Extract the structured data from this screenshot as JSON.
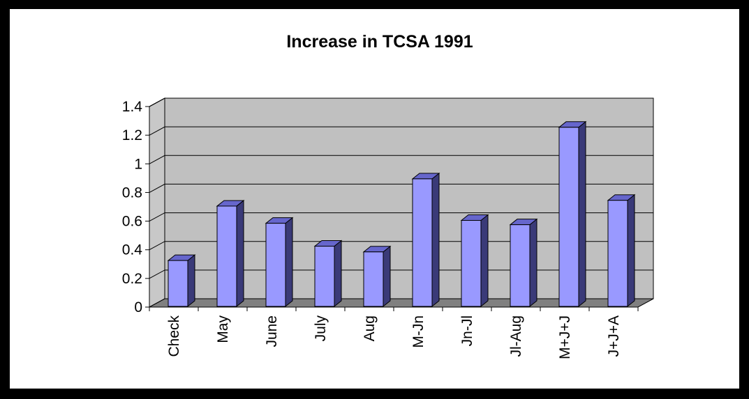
{
  "chart_data": {
    "type": "bar",
    "title": "Increase in TCSA 1991",
    "xlabel": "",
    "ylabel": "",
    "categories": [
      "Check",
      "May",
      "June",
      "July",
      "Aug",
      "M-Jn",
      "Jn-Jl",
      "Jl-Aug",
      "M+J+J",
      "J+J+A"
    ],
    "values": [
      0.33,
      0.71,
      0.59,
      0.43,
      0.39,
      0.9,
      0.61,
      0.58,
      1.26,
      0.75
    ],
    "ylim": [
      0,
      1.4
    ],
    "yticks": [
      "0",
      "0.2",
      "0.4",
      "0.6",
      "0.8",
      "1",
      "1.2",
      "1.4"
    ],
    "grid": true,
    "style": "3d-column",
    "colors": {
      "bar_front": "#9999ff",
      "bar_side": "#3a3a78",
      "bar_top": "#6666cc",
      "back_wall": "#c0c0c0",
      "side_wall": "#c8c8c8",
      "floor": "#808080"
    }
  }
}
